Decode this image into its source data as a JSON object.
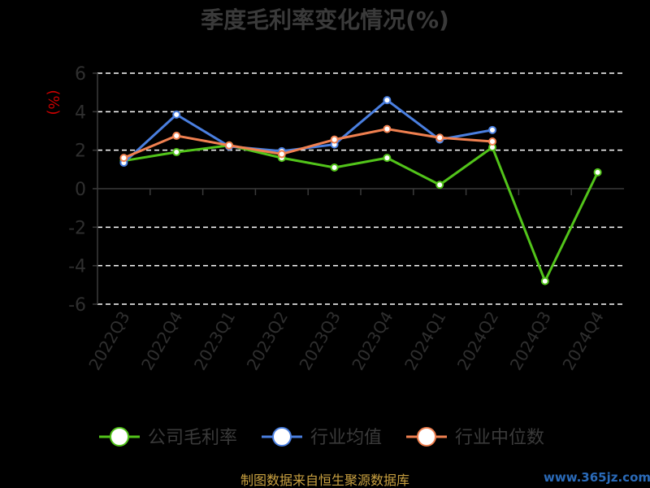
{
  "chart_data": {
    "type": "line",
    "title": "季度毛利率变化情况(%)",
    "ylabel": "(%)",
    "ylim": [
      -6,
      6
    ],
    "yticks": [
      6,
      4,
      2,
      0,
      -2,
      -4,
      -6
    ],
    "grid": true,
    "legend_position": "bottom",
    "categories": [
      "2022Q3",
      "2022Q4",
      "2023Q1",
      "2023Q2",
      "2023Q3",
      "2023Q4",
      "2024Q1",
      "2024Q2",
      "2024Q3",
      "2024Q4"
    ],
    "series": [
      {
        "name": "公司毛利率",
        "color": "#52c41a",
        "values": [
          1.45,
          1.9,
          2.25,
          1.6,
          1.1,
          1.6,
          0.2,
          2.15,
          -4.8,
          0.85
        ]
      },
      {
        "name": "行业均值",
        "color": "#4a7fe0",
        "values": [
          1.35,
          3.85,
          2.2,
          1.95,
          2.3,
          4.6,
          2.55,
          3.05,
          null,
          null
        ]
      },
      {
        "name": "行业中位数",
        "color": "#f08050",
        "values": [
          1.6,
          2.75,
          2.25,
          1.8,
          2.55,
          3.1,
          2.65,
          2.45,
          null,
          null
        ]
      }
    ]
  },
  "footer": {
    "source": "制图数据来自恒生聚源数据库",
    "watermark": "www.365jz.com"
  }
}
